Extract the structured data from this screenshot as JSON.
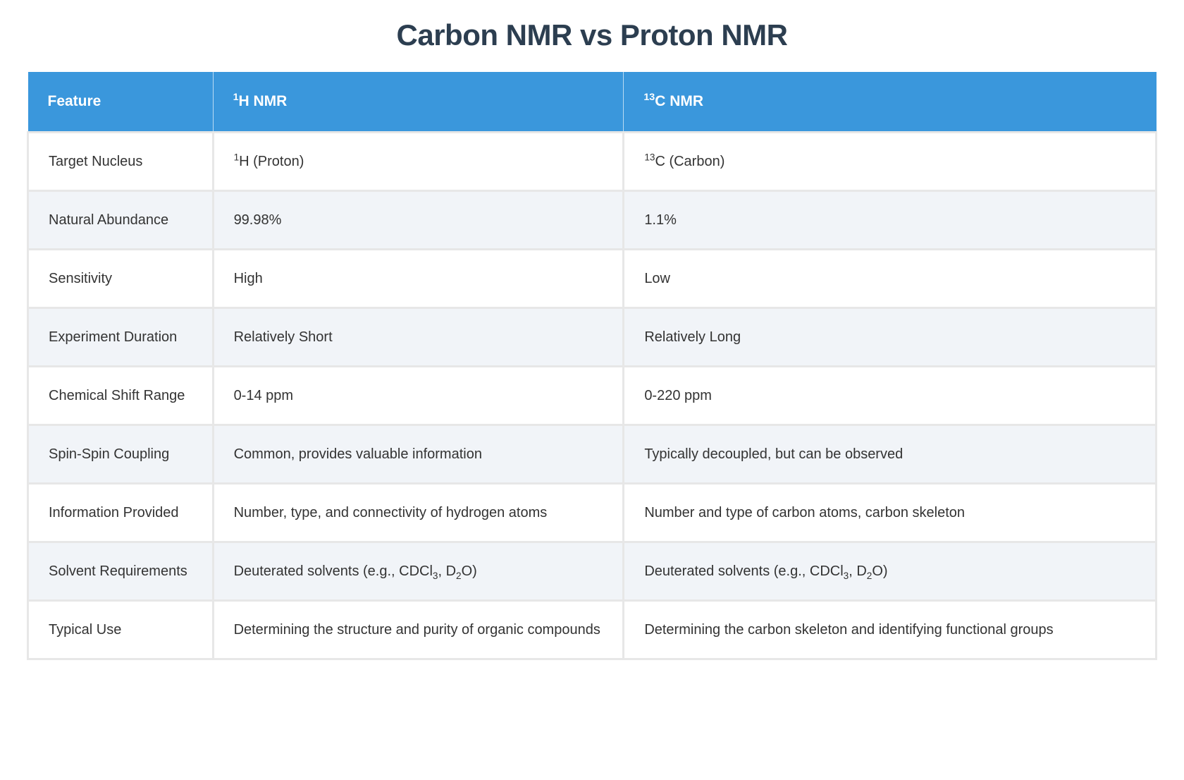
{
  "page": {
    "title": "Carbon NMR vs Proton NMR"
  },
  "colors": {
    "title_text": "#2c3e50",
    "header_bg": "#3a97dc",
    "header_text": "#ffffff",
    "row_bg": "#ffffff",
    "row_alt_bg": "#f1f4f8",
    "border": "#e7e7e7",
    "body_text": "#333333"
  },
  "table": {
    "columns": [
      {
        "key": "feature",
        "label": "Feature"
      },
      {
        "key": "h-nmr",
        "label": "^{1}H NMR"
      },
      {
        "key": "c-nmr",
        "label": "^{13}C NMR"
      }
    ],
    "rows": [
      [
        "Target Nucleus",
        "^{1}H (Proton)",
        "^{13}C (Carbon)"
      ],
      [
        "Natural Abundance",
        "99.98%",
        "1.1%"
      ],
      [
        "Sensitivity",
        "High",
        "Low"
      ],
      [
        "Experiment Duration",
        "Relatively Short",
        "Relatively Long"
      ],
      [
        "Chemical Shift Range",
        "0-14 ppm",
        "0-220 ppm"
      ],
      [
        "Spin-Spin Coupling",
        "Common, provides valuable information",
        "Typically decoupled, but can be observed"
      ],
      [
        "Information Provided",
        "Number, type, and connectivity of hydrogen atoms",
        "Number and type of carbon atoms, carbon skeleton"
      ],
      [
        "Solvent Requirements",
        "Deuterated solvents (e.g., CDCl_{3}, D_{2}O)",
        "Deuterated solvents (e.g., CDCl_{3}, D_{2}O)"
      ],
      [
        "Typical Use",
        "Determining the structure and purity of organic compounds",
        "Determining the carbon skeleton and identifying functional groups"
      ]
    ]
  }
}
